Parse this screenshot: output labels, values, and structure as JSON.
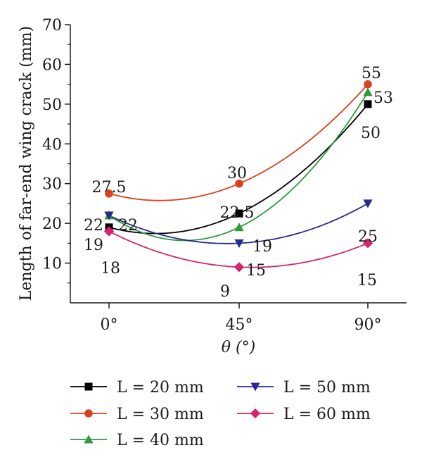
{
  "chart_data": {
    "type": "line",
    "x_categories": [
      "0°",
      "45°",
      "90°"
    ],
    "xlabel": "θ (°)",
    "ylabel": "Length of far-end wing crack (mm)",
    "ylim": [
      0,
      70
    ],
    "yticks": [
      10,
      20,
      30,
      40,
      50,
      60,
      70
    ],
    "grid": false,
    "legend_position": "bottom",
    "series": [
      {
        "name": "L = 20 mm",
        "marker": "square",
        "color": "#000000",
        "values": [
          19,
          22.5,
          50
        ]
      },
      {
        "name": "L = 30 mm",
        "marker": "circle",
        "color": "#d9401f",
        "values": [
          27.5,
          30,
          55
        ]
      },
      {
        "name": "L = 40 mm",
        "marker": "triangle-up",
        "color": "#2e9a3a",
        "values": [
          22,
          19,
          53
        ]
      },
      {
        "name": "L = 50 mm",
        "marker": "triangle-down",
        "color": "#2a2a8c",
        "values": [
          22,
          15,
          25
        ]
      },
      {
        "name": "L = 60 mm",
        "marker": "diamond",
        "color": "#d6246e",
        "values": [
          18,
          9,
          15
        ]
      }
    ],
    "data_labels": [
      {
        "text": "27.5",
        "series": 1,
        "point": 0
      },
      {
        "text": "30",
        "series": 1,
        "point": 1
      },
      {
        "text": "55",
        "series": 1,
        "point": 2
      },
      {
        "text": "22",
        "series": 2,
        "point": 0
      },
      {
        "text": "22",
        "series": 3,
        "point": 0
      },
      {
        "text": "19",
        "series": 0,
        "point": 0
      },
      {
        "text": "18",
        "series": 4,
        "point": 0
      },
      {
        "text": "22.5",
        "series": 0,
        "point": 1
      },
      {
        "text": "19",
        "series": 2,
        "point": 1
      },
      {
        "text": "15",
        "series": 3,
        "point": 1
      },
      {
        "text": "9",
        "series": 4,
        "point": 1
      },
      {
        "text": "53",
        "series": 2,
        "point": 2
      },
      {
        "text": "50",
        "series": 0,
        "point": 2
      },
      {
        "text": "25",
        "series": 3,
        "point": 2
      },
      {
        "text": "15",
        "series": 4,
        "point": 2
      }
    ]
  }
}
